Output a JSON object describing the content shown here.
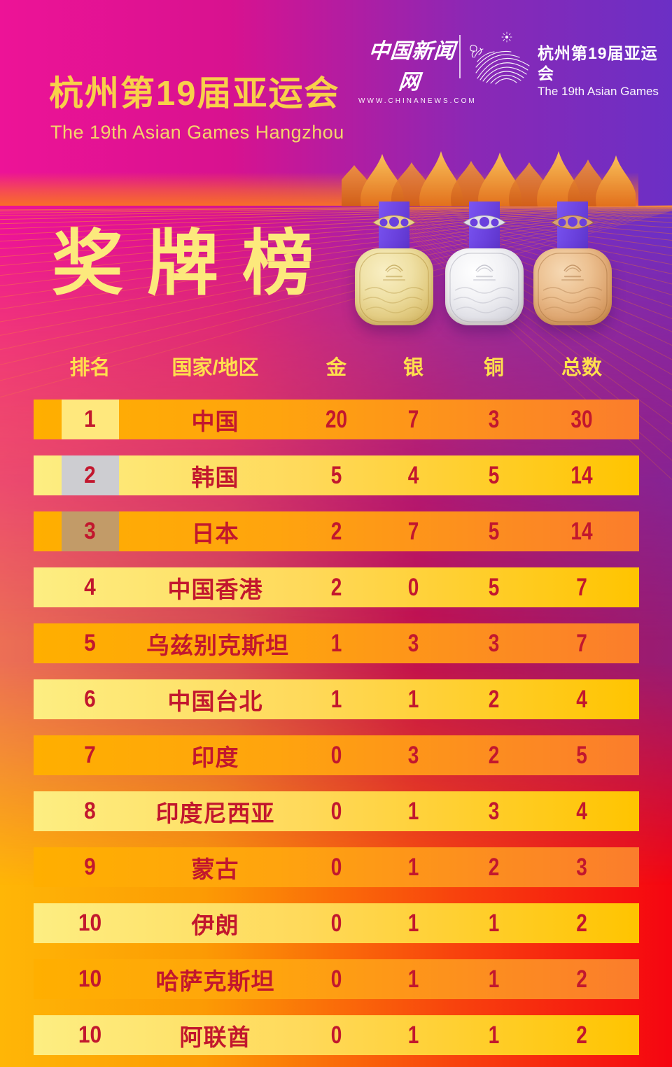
{
  "brand": {
    "logo_zh": "中国新闻网",
    "logo_url": "WWW.CHINANEWS.COM",
    "games_zh": "杭州第19届亚运会",
    "games_en": "The 19th Asian Games"
  },
  "title": {
    "zh": "杭州第19届亚运会",
    "en": "The 19th Asian Games Hangzhou"
  },
  "board": {
    "title": "奖牌榜"
  },
  "table": {
    "headers": [
      "排名",
      "国家/地区",
      "金",
      "银",
      "铜",
      "总数"
    ],
    "rows": [
      {
        "rank": "1",
        "region": "中国",
        "gold": "20",
        "silver": "7",
        "bronze": "3",
        "total": "30",
        "tier": "gold"
      },
      {
        "rank": "2",
        "region": "韩国",
        "gold": "5",
        "silver": "4",
        "bronze": "5",
        "total": "14",
        "tier": "silver"
      },
      {
        "rank": "3",
        "region": "日本",
        "gold": "2",
        "silver": "7",
        "bronze": "5",
        "total": "14",
        "tier": "bronze"
      },
      {
        "rank": "4",
        "region": "中国香港",
        "gold": "2",
        "silver": "0",
        "bronze": "5",
        "total": "7",
        "tier": null
      },
      {
        "rank": "5",
        "region": "乌兹别克斯坦",
        "gold": "1",
        "silver": "3",
        "bronze": "3",
        "total": "7",
        "tier": null
      },
      {
        "rank": "6",
        "region": "中国台北",
        "gold": "1",
        "silver": "1",
        "bronze": "2",
        "total": "4",
        "tier": null
      },
      {
        "rank": "7",
        "region": "印度",
        "gold": "0",
        "silver": "3",
        "bronze": "2",
        "total": "5",
        "tier": null
      },
      {
        "rank": "8",
        "region": "印度尼西亚",
        "gold": "0",
        "silver": "1",
        "bronze": "3",
        "total": "4",
        "tier": null
      },
      {
        "rank": "9",
        "region": "蒙古",
        "gold": "0",
        "silver": "1",
        "bronze": "2",
        "total": "3",
        "tier": null
      },
      {
        "rank": "10",
        "region": "伊朗",
        "gold": "0",
        "silver": "1",
        "bronze": "1",
        "total": "2",
        "tier": null
      },
      {
        "rank": "10",
        "region": "哈萨克斯坦",
        "gold": "0",
        "silver": "1",
        "bronze": "1",
        "total": "2",
        "tier": null
      },
      {
        "rank": "10",
        "region": "阿联酋",
        "gold": "0",
        "silver": "1",
        "bronze": "1",
        "total": "2",
        "tier": null
      }
    ]
  },
  "chart_data": {
    "type": "table",
    "title": "奖牌榜 — 杭州第19届亚运会 (The 19th Asian Games Hangzhou medal table)",
    "columns": [
      "排名",
      "国家/地区",
      "金",
      "银",
      "铜",
      "总数"
    ],
    "rows": [
      [
        1,
        "中国",
        20,
        7,
        3,
        30
      ],
      [
        2,
        "韩国",
        5,
        4,
        5,
        14
      ],
      [
        3,
        "日本",
        2,
        7,
        5,
        14
      ],
      [
        4,
        "中国香港",
        2,
        0,
        5,
        7
      ],
      [
        5,
        "乌兹别克斯坦",
        1,
        3,
        3,
        7
      ],
      [
        6,
        "中国台北",
        1,
        1,
        2,
        4
      ],
      [
        7,
        "印度",
        0,
        3,
        2,
        5
      ],
      [
        8,
        "印度尼西亚",
        0,
        1,
        3,
        4
      ],
      [
        9,
        "蒙古",
        0,
        1,
        2,
        3
      ],
      [
        10,
        "伊朗",
        0,
        1,
        1,
        2
      ],
      [
        10,
        "哈萨克斯坦",
        0,
        1,
        1,
        2
      ],
      [
        10,
        "阿联酋",
        0,
        1,
        1,
        2
      ]
    ]
  },
  "theme": {
    "accent_title_yellow": "#f8d04a",
    "board_title_yellow": "#fce97c",
    "header_yellow": "#ffdf4d",
    "row_text_crimson": "#c2172e",
    "row_orange": "#fb7d2c",
    "row_yellow": "#ffd95a",
    "rank_gold": "#ffe87d",
    "rank_silver": "#cdcdd1",
    "rank_bronze": "#c29b68",
    "ribbon_purple": "#6a41dd",
    "bg_top_left": "#ed1397",
    "bg_top_right": "#6c2fc5",
    "bg_bottom_left": "#ffb606",
    "bg_bottom_right": "#f50511"
  }
}
